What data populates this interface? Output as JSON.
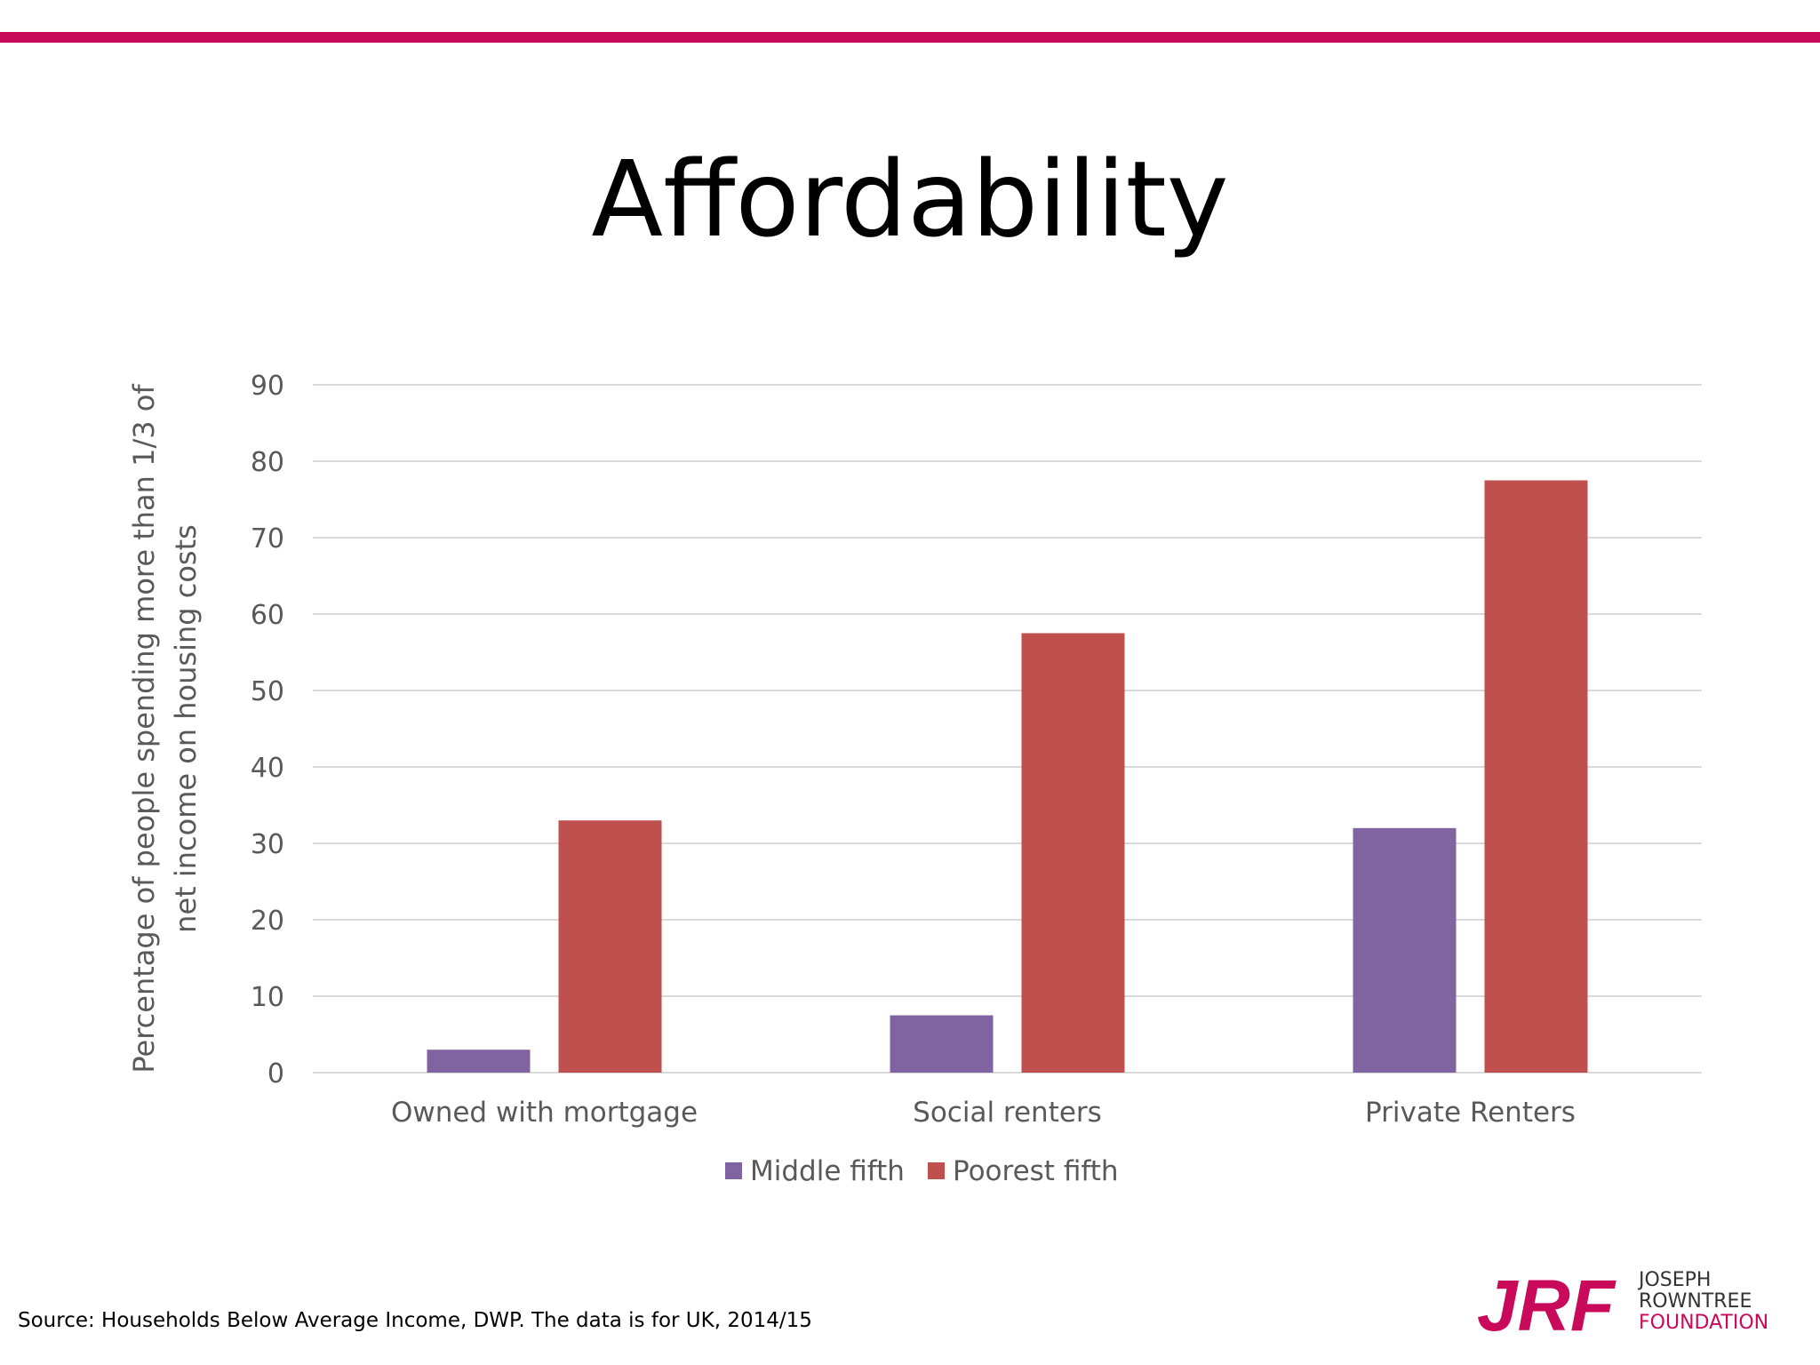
{
  "slide": {
    "title": "Affordability",
    "source": "Source: Households Below Average Income, DWP. The data is for UK, 2014/15",
    "accent_color": "#c9095a"
  },
  "logo": {
    "mark": "JRF",
    "line1": "JOSEPH",
    "line2": "ROWNTREE",
    "line3": "FOUNDATION",
    "mark_color": "#c9095a"
  },
  "chart_data": {
    "type": "bar",
    "categories": [
      "Owned with mortgage",
      "Social renters",
      "Private Renters"
    ],
    "series": [
      {
        "name": "Middle fifth",
        "values": [
          3,
          7.5,
          32
        ],
        "color": "#8064a2"
      },
      {
        "name": "Poorest fifth",
        "values": [
          33,
          57.5,
          77.5
        ],
        "color": "#c0504d"
      }
    ],
    "ylabel": "Percentage of people spending more than 1/3 of net income on housing costs",
    "ylabel_lines": [
      "Percentage of people spending more than 1/3 of",
      "net income on housing costs"
    ],
    "ylim": [
      0,
      90
    ],
    "yticks": [
      0,
      10,
      20,
      30,
      40,
      50,
      60,
      70,
      80,
      90
    ],
    "grid": true,
    "legend_position": "bottom"
  }
}
